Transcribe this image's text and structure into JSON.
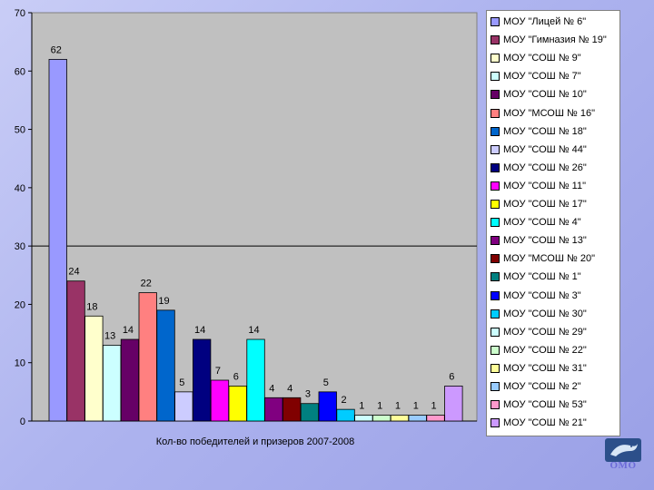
{
  "chart_data": {
    "type": "bar",
    "xlabel": "Кол-во победителей и призеров 2007-2008",
    "ylabel": "",
    "ylim": [
      0,
      70
    ],
    "yticks": [
      0,
      10,
      20,
      30,
      40,
      50,
      60,
      70
    ],
    "reference_line": 30,
    "legend_position": "right",
    "series": [
      {
        "name": "МОУ \"Лицей № 6\"",
        "value": 62,
        "color": "#9999ff"
      },
      {
        "name": "МОУ \"Гимназия № 19\"",
        "value": 24,
        "color": "#993366"
      },
      {
        "name": "МОУ \"СОШ № 9\"",
        "value": 18,
        "color": "#ffffcc"
      },
      {
        "name": "МОУ \"СОШ № 7\"",
        "value": 13,
        "color": "#ccffff"
      },
      {
        "name": "МОУ \"СОШ № 10\"",
        "value": 14,
        "color": "#660066"
      },
      {
        "name": "МОУ \"МСОШ № 16\"",
        "value": 22,
        "color": "#ff8080"
      },
      {
        "name": "МОУ \"СОШ № 18\"",
        "value": 19,
        "color": "#0066cc"
      },
      {
        "name": "МОУ \"СОШ № 44\"",
        "value": 5,
        "color": "#ccccff"
      },
      {
        "name": "МОУ \"СОШ № 26\"",
        "value": 14,
        "color": "#000080"
      },
      {
        "name": "МОУ \"СОШ № 11\"",
        "value": 7,
        "color": "#ff00ff"
      },
      {
        "name": "МОУ \"СОШ № 17\"",
        "value": 6,
        "color": "#ffff00"
      },
      {
        "name": "МОУ \"СОШ № 4\"",
        "value": 14,
        "color": "#00ffff"
      },
      {
        "name": "МОУ \"СОШ № 13\"",
        "value": 4,
        "color": "#800080"
      },
      {
        "name": "МОУ \"МСОШ № 20\"",
        "value": 4,
        "color": "#800000"
      },
      {
        "name": "МОУ \"СОШ № 1\"",
        "value": 3,
        "color": "#008080"
      },
      {
        "name": "МОУ \"СОШ № 3\"",
        "value": 5,
        "color": "#0000ff"
      },
      {
        "name": "МОУ \"СОШ № 30\"",
        "value": 2,
        "color": "#00ccff"
      },
      {
        "name": "МОУ \"СОШ № 29\"",
        "value": 1,
        "color": "#ccffff"
      },
      {
        "name": "МОУ \"СОШ № 22\"",
        "value": 1,
        "color": "#ccffcc"
      },
      {
        "name": "МОУ \"СОШ № 31\"",
        "value": 1,
        "color": "#ffff99"
      },
      {
        "name": "МОУ \"СОШ № 2\"",
        "value": 1,
        "color": "#99ccff"
      },
      {
        "name": "МОУ \"СОШ № 53\"",
        "value": 1,
        "color": "#ff99cc"
      },
      {
        "name": "МОУ \"СОШ № 21\"",
        "value": 6,
        "color": "#cc99ff"
      }
    ]
  },
  "logo": {
    "text": "ОМО",
    "icon": "dolphin-emblem-icon"
  }
}
